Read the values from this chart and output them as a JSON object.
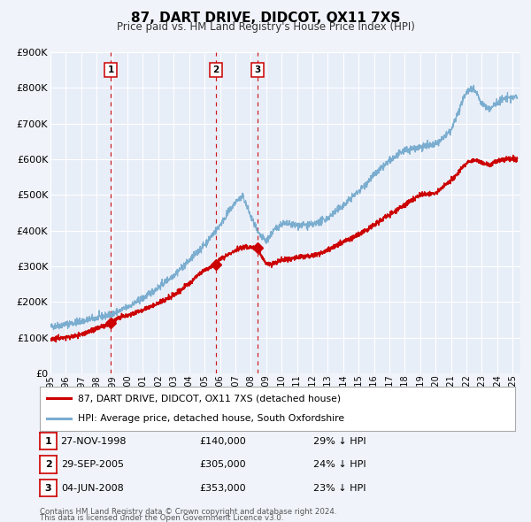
{
  "title": "87, DART DRIVE, DIDCOT, OX11 7XS",
  "subtitle": "Price paid vs. HM Land Registry's House Price Index (HPI)",
  "background_color": "#f0f4fa",
  "plot_bg_color": "#e8eef8",
  "grid_color": "#ffffff",
  "ylim": [
    0,
    900000
  ],
  "yticks": [
    0,
    100000,
    200000,
    300000,
    400000,
    500000,
    600000,
    700000,
    800000,
    900000
  ],
  "x_start": 1995.0,
  "x_end": 2025.5,
  "transactions": [
    {
      "label": "1",
      "date_str": "27-NOV-1998",
      "date_x": 1998.92,
      "price": 140000,
      "pct": "29% ↓ HPI"
    },
    {
      "label": "2",
      "date_str": "29-SEP-2005",
      "date_x": 2005.75,
      "price": 305000,
      "pct": "24% ↓ HPI"
    },
    {
      "label": "3",
      "date_str": "04-JUN-2008",
      "date_x": 2008.43,
      "price": 353000,
      "pct": "23% ↓ HPI"
    }
  ],
  "red_line_color": "#cc0000",
  "blue_line_color": "#7aadcf",
  "legend_label_red": "87, DART DRIVE, DIDCOT, OX11 7XS (detached house)",
  "legend_label_blue": "HPI: Average price, detached house, South Oxfordshire",
  "footer1": "Contains HM Land Registry data © Crown copyright and database right 2024.",
  "footer2": "This data is licensed under the Open Government Licence v3.0.",
  "marker_color": "#cc0000",
  "vline_color": "#cc0000",
  "box_edge_color": "#cc0000",
  "xtick_years": [
    1995,
    1996,
    1997,
    1998,
    1999,
    2000,
    2001,
    2002,
    2003,
    2004,
    2005,
    2006,
    2007,
    2008,
    2009,
    2010,
    2011,
    2012,
    2013,
    2014,
    2015,
    2016,
    2017,
    2018,
    2019,
    2020,
    2021,
    2022,
    2023,
    2024,
    2025
  ]
}
